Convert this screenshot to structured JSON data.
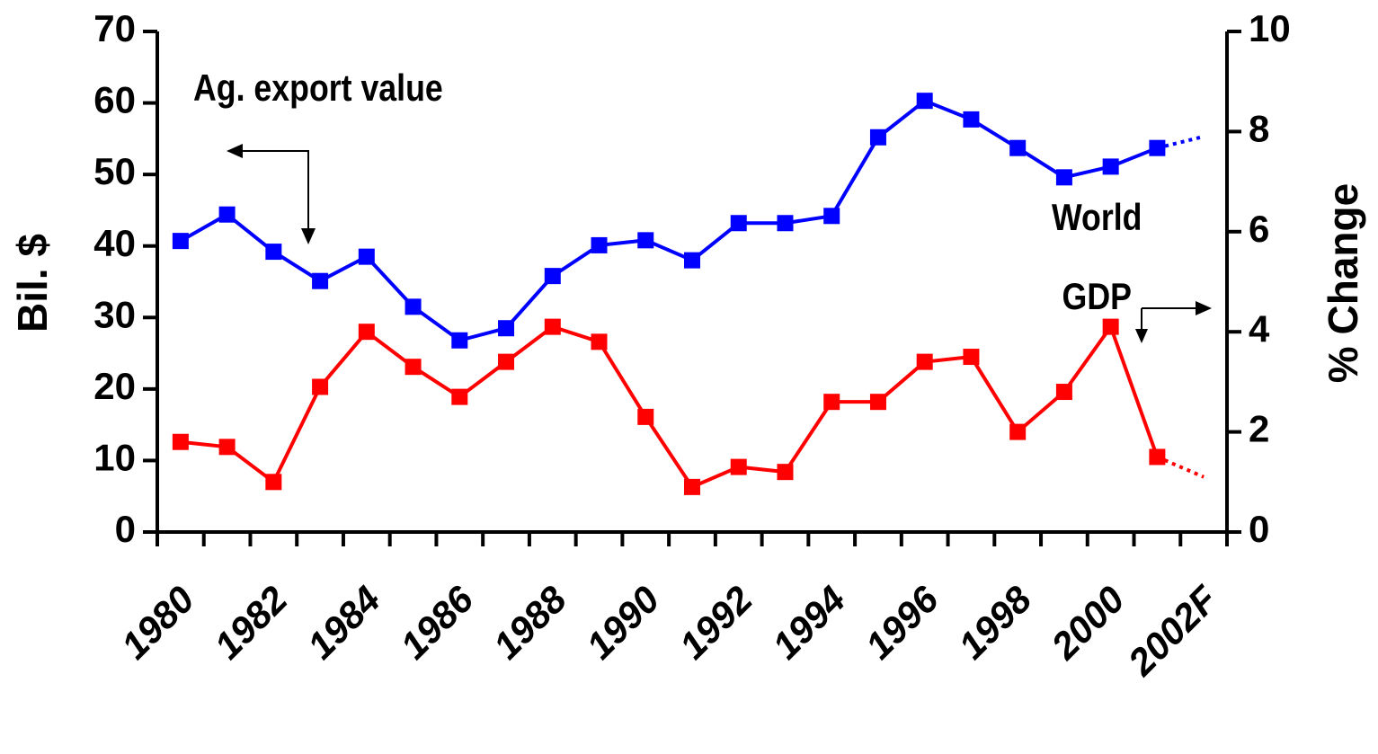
{
  "chart_data": {
    "type": "line",
    "categories": [
      "1980",
      null,
      "1982",
      null,
      "1984",
      null,
      "1986",
      null,
      "1988",
      null,
      "1990",
      null,
      "1992",
      null,
      "1994",
      null,
      "1996",
      null,
      "1998",
      null,
      "2000",
      null,
      "2002F"
    ],
    "series": [
      {
        "name": "Ag. export value",
        "color": "#0000ff",
        "values": [
          40.7,
          44.4,
          39.2,
          35.1,
          38.5,
          31.5,
          26.8,
          28.5,
          35.8,
          40.1,
          40.8,
          38.0,
          43.2,
          43.2,
          44.2,
          55.2,
          60.3,
          57.7,
          53.7,
          49.6,
          51.1,
          53.7,
          55.3
        ]
      },
      {
        "name": "World GDP",
        "color": "#ff0000",
        "axis": "y2",
        "values": [
          1.8,
          1.7,
          1.0,
          2.9,
          4.0,
          3.3,
          2.7,
          3.4,
          4.1,
          3.8,
          2.3,
          0.9,
          1.3,
          1.2,
          2.6,
          2.6,
          3.4,
          3.5,
          2.0,
          2.8,
          4.1,
          1.5,
          1.1
        ]
      }
    ],
    "forecast_last": true,
    "ylabel": "Bil. $",
    "y2label": "% Change",
    "ylim": [
      0,
      70
    ],
    "yticks": [
      0,
      10,
      20,
      30,
      40,
      50,
      60,
      70
    ],
    "y2lim": [
      0,
      10
    ],
    "y2ticks": [
      0,
      2,
      4,
      6,
      8,
      10
    ]
  }
}
